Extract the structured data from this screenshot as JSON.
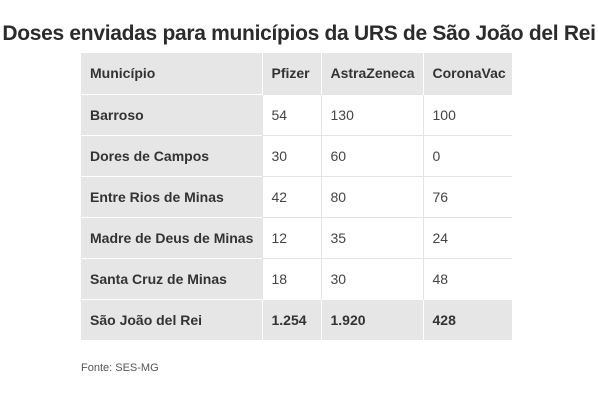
{
  "chart_data": {
    "type": "table",
    "title": "Doses enviadas para municípios da URS de São João del Rei",
    "columns": [
      "Município",
      "Pfizer",
      "AstraZeneca",
      "CoronaVac"
    ],
    "rows": [
      {
        "municipio": "Barroso",
        "pfizer": "54",
        "astrazeneca": "130",
        "coronavac": "100"
      },
      {
        "municipio": "Dores de Campos",
        "pfizer": "30",
        "astrazeneca": "60",
        "coronavac": "0"
      },
      {
        "municipio": "Entre Rios de Minas",
        "pfizer": "42",
        "astrazeneca": "80",
        "coronavac": "76"
      },
      {
        "municipio": "Madre de Deus de Minas",
        "pfizer": "12",
        "astrazeneca": "35",
        "coronavac": "24"
      },
      {
        "municipio": "Santa Cruz de Minas",
        "pfizer": "18",
        "astrazeneca": "30",
        "coronavac": "48"
      }
    ],
    "total_row": {
      "municipio": "São João del Rei",
      "pfizer": "1.254",
      "astrazeneca": "1.920",
      "coronavac": "428"
    },
    "source": "Fonte: SES-MG"
  },
  "colors": {
    "header_bg": "#e6e6e6",
    "body_bg": "#ffffff",
    "text": "#333333"
  }
}
